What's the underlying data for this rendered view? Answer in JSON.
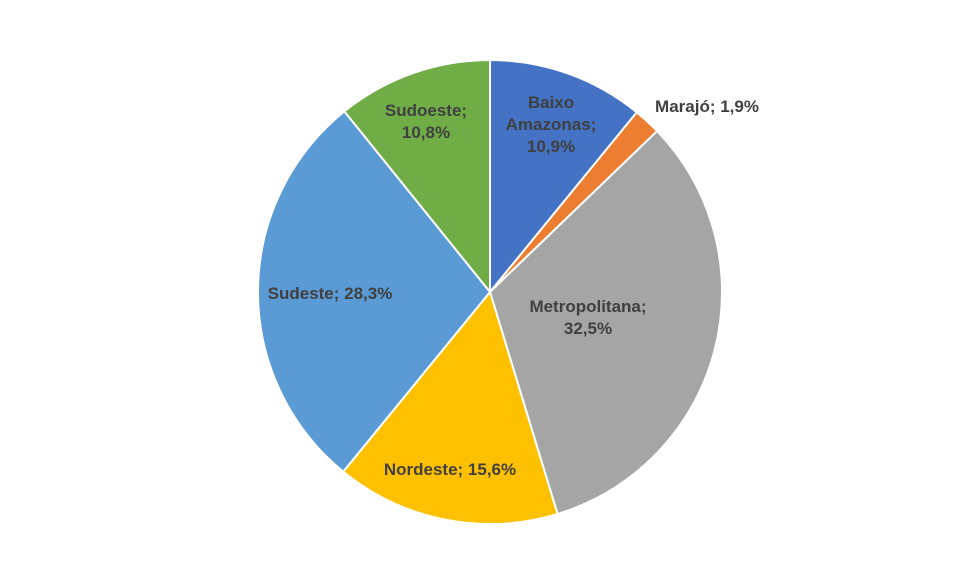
{
  "chart_data": {
    "type": "pie",
    "categories": [
      "Baixo Amazonas",
      "Marajó",
      "Metropolitana",
      "Nordeste",
      "Sudeste",
      "Sudoeste"
    ],
    "values": [
      10.9,
      1.9,
      32.5,
      15.6,
      28.3,
      10.8
    ],
    "value_labels": [
      "Baixo Amazonas; 10,9%",
      "Marajó; 1,9%",
      "Metropolitana; 32,5%",
      "Nordeste; 15,6%",
      "Sudeste; 28,3%",
      "Sudoeste; 10,8%"
    ],
    "colors": [
      "#4472c4",
      "#ed7d31",
      "#a5a5a5",
      "#ffc000",
      "#5b9bd5",
      "#70ad47"
    ]
  }
}
